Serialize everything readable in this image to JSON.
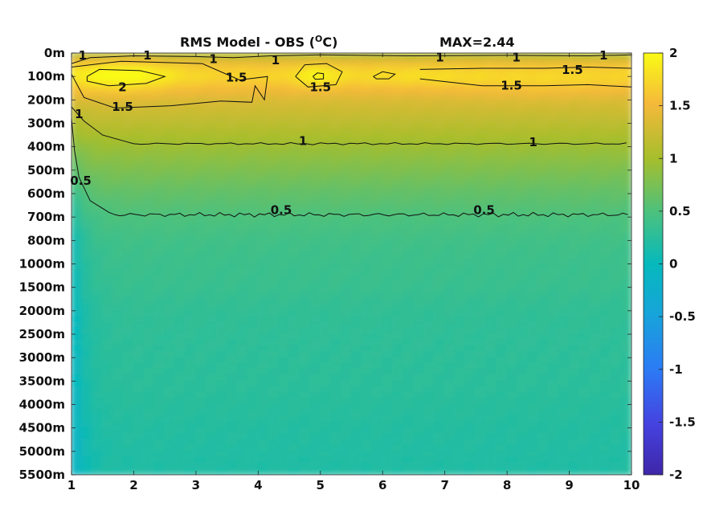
{
  "chart_data": {
    "type": "heatmap",
    "title": "RMS Model - OBS (",
    "title_unit_sup": "O",
    "title_unit_tail": "C)",
    "max_label": "MAX=2.44",
    "colormap": "parula",
    "x_ticks": [
      1,
      2,
      3,
      4,
      5,
      6,
      7,
      8,
      9,
      10
    ],
    "xlim": [
      1,
      10
    ],
    "y_ticks": [
      "0m",
      "100m",
      "200m",
      "300m",
      "400m",
      "500m",
      "600m",
      "700m",
      "800m",
      "1000m",
      "1500m",
      "2000m",
      "2500m",
      "3000m",
      "3500m",
      "4000m",
      "4500m",
      "5000m",
      "5500m"
    ],
    "colorbar": {
      "range": [
        -2,
        2
      ],
      "ticks": [
        2,
        1.5,
        1,
        0.5,
        0,
        -0.5,
        -1,
        -1.5,
        -2
      ],
      "tick_labels": [
        "2",
        "1.5",
        "1",
        "0.5",
        "0",
        "-0.5",
        "-1",
        "-1.5",
        "-2"
      ]
    },
    "value_profile": {
      "depth_index": [
        0,
        0.5,
        1,
        1.5,
        2,
        2.5,
        3,
        3.5,
        4,
        5,
        6,
        7,
        8,
        9,
        10,
        11,
        12,
        13,
        14,
        15,
        16,
        17,
        18
      ],
      "value": [
        1.0,
        1.55,
        1.75,
        1.55,
        1.35,
        1.25,
        1.15,
        1.05,
        0.95,
        0.78,
        0.62,
        0.5,
        0.42,
        0.38,
        0.36,
        0.31,
        0.29,
        0.28,
        0.27,
        0.25,
        0.22,
        0.2,
        0.19
      ]
    },
    "contour_labels": [
      {
        "text": "1",
        "x": 1.18,
        "y": 0.1
      },
      {
        "text": "1",
        "x": 2.22,
        "y": 0.1
      },
      {
        "text": "1",
        "x": 3.28,
        "y": 0.25
      },
      {
        "text": "1",
        "x": 4.28,
        "y": 0.3
      },
      {
        "text": "1",
        "x": 6.92,
        "y": 0.18
      },
      {
        "text": "1",
        "x": 8.15,
        "y": 0.18
      },
      {
        "text": "1",
        "x": 9.55,
        "y": 0.1
      },
      {
        "text": "1.5",
        "x": 3.65,
        "y": 1.05
      },
      {
        "text": "1.5",
        "x": 5.0,
        "y": 1.45
      },
      {
        "text": "1.5",
        "x": 8.07,
        "y": 1.38
      },
      {
        "text": "1.5",
        "x": 9.05,
        "y": 0.72
      },
      {
        "text": "1.5",
        "x": 1.82,
        "y": 2.3
      },
      {
        "text": "2",
        "x": 1.82,
        "y": 1.45
      },
      {
        "text": "1",
        "x": 1.12,
        "y": 2.6
      },
      {
        "text": "1",
        "x": 4.72,
        "y": 3.75
      },
      {
        "text": "1",
        "x": 8.42,
        "y": 3.8
      },
      {
        "text": "0.5",
        "x": 1.15,
        "y": 5.45
      },
      {
        "text": "0.5",
        "x": 4.37,
        "y": 6.7
      },
      {
        "text": "0.5",
        "x": 7.63,
        "y": 6.7
      }
    ]
  }
}
